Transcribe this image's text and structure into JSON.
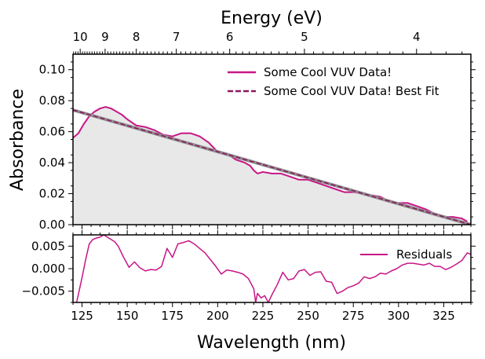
{
  "chart_data": [
    {
      "panel": "main",
      "type": "line",
      "xlabel": "Wavelength (nm)",
      "ylabel": "Absorbance",
      "top_axis_label": "Energy (eV)",
      "top_ticks": [
        "10",
        "9",
        "8",
        "7",
        "6",
        "5",
        "4"
      ],
      "top_tick_values_ev": [
        10,
        9,
        8,
        7,
        6,
        5,
        4
      ],
      "xlim": [
        120,
        340
      ],
      "ylim": [
        0,
        0.11
      ],
      "yticks": [
        "0.00",
        "0.02",
        "0.04",
        "0.06",
        "0.08",
        "0.10"
      ],
      "ytick_values": [
        0,
        0.02,
        0.04,
        0.06,
        0.08,
        0.1
      ],
      "grid": false,
      "legend_position": "top-right",
      "series": [
        {
          "name": "Some Cool VUV Data!",
          "color": "#c71585",
          "style": "solid",
          "x": [
            120,
            123,
            126,
            129,
            132,
            135,
            138,
            141,
            144,
            147,
            150,
            155,
            160,
            165,
            170,
            175,
            180,
            185,
            190,
            195,
            200,
            205,
            210,
            215,
            218,
            220,
            222,
            225,
            230,
            235,
            240,
            245,
            250,
            255,
            260,
            265,
            270,
            275,
            280,
            285,
            290,
            295,
            300,
            305,
            310,
            315,
            320,
            325,
            330,
            335,
            338
          ],
          "y": [
            0.056,
            0.059,
            0.065,
            0.07,
            0.073,
            0.075,
            0.076,
            0.075,
            0.073,
            0.071,
            0.068,
            0.064,
            0.063,
            0.061,
            0.058,
            0.057,
            0.059,
            0.059,
            0.057,
            0.053,
            0.047,
            0.046,
            0.042,
            0.04,
            0.038,
            0.035,
            0.033,
            0.034,
            0.033,
            0.033,
            0.031,
            0.029,
            0.029,
            0.027,
            0.025,
            0.023,
            0.021,
            0.021,
            0.02,
            0.019,
            0.018,
            0.015,
            0.014,
            0.014,
            0.012,
            0.01,
            0.007,
            0.005,
            0.005,
            0.004,
            0.002
          ]
        },
        {
          "name": "Some Cool VUV Data! Best Fit",
          "color": "#8b1a5e",
          "style": "dashed",
          "x": [
            120,
            340
          ],
          "y": [
            0.074,
            0.0
          ]
        }
      ]
    },
    {
      "panel": "residuals",
      "type": "line",
      "xlabel": "Wavelength (nm)",
      "xlim": [
        120,
        340
      ],
      "ylim": [
        -0.0075,
        0.0075
      ],
      "xticks": [
        "125",
        "150",
        "175",
        "200",
        "225",
        "250",
        "275",
        "300",
        "325"
      ],
      "xtick_values": [
        125,
        150,
        175,
        200,
        225,
        250,
        275,
        300,
        325
      ],
      "yticks": [
        "0.005",
        "0.000",
        "−0.005"
      ],
      "ytick_values": [
        0.005,
        0.0,
        -0.005
      ],
      "grid": false,
      "legend_position": "top-right",
      "series": [
        {
          "name": "Residuals",
          "color": "#c71585",
          "x": [
            122,
            125,
            127,
            129,
            131,
            133,
            135,
            137,
            139,
            141,
            143,
            145,
            148,
            151,
            154,
            157,
            160,
            163,
            166,
            169,
            172,
            175,
            178,
            181,
            184,
            187,
            190,
            193,
            196,
            199,
            202,
            205,
            208,
            211,
            214,
            217,
            220,
            221,
            222,
            224,
            226,
            228,
            230,
            233,
            236,
            239,
            242,
            245,
            248,
            251,
            254,
            257,
            260,
            263,
            266,
            269,
            272,
            275,
            278,
            281,
            284,
            287,
            290,
            293,
            296,
            299,
            302,
            305,
            308,
            311,
            314,
            317,
            320,
            323,
            326,
            329,
            332,
            335,
            338,
            340
          ],
          "y": [
            -0.0075,
            -0.002,
            0.002,
            0.0055,
            0.0065,
            0.0068,
            0.007,
            0.0075,
            0.007,
            0.0065,
            0.006,
            0.005,
            0.0025,
            0.0003,
            0.0015,
            0.0002,
            -0.0005,
            -0.0002,
            -0.0003,
            0.0005,
            0.0045,
            0.0025,
            0.0055,
            0.0058,
            0.0062,
            0.0055,
            0.0045,
            0.0035,
            0.002,
            0.0005,
            -0.0012,
            -0.0003,
            -0.0005,
            -0.0008,
            -0.0012,
            -0.0022,
            -0.0045,
            -0.0075,
            -0.0055,
            -0.0065,
            -0.006,
            -0.0075,
            -0.0058,
            -0.0035,
            -0.0008,
            -0.0025,
            -0.0022,
            -0.0005,
            -0.0002,
            -0.0015,
            -0.0008,
            -0.0007,
            -0.0028,
            -0.003,
            -0.0055,
            -0.005,
            -0.0042,
            -0.0038,
            -0.0032,
            -0.0018,
            -0.0022,
            -0.0018,
            -0.001,
            -0.0012,
            -0.0005,
            0.0,
            0.0008,
            0.0012,
            0.0012,
            0.001,
            0.0008,
            0.0012,
            0.0005,
            0.0005,
            -0.0002,
            0.0003,
            0.001,
            0.0018,
            0.0035,
            0.0032
          ]
        }
      ]
    }
  ]
}
